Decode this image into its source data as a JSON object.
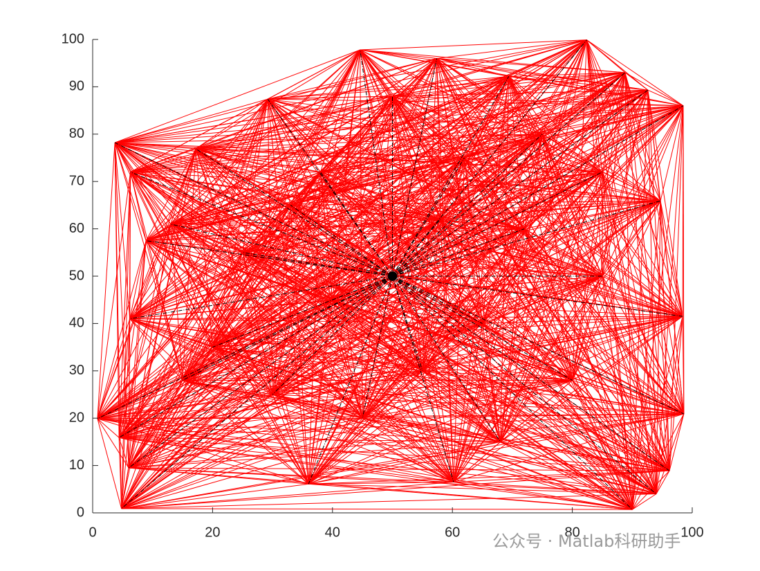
{
  "chart_data": {
    "type": "network",
    "x": [
      3.7,
      44.6,
      82.4,
      98.5,
      98.6,
      96.2,
      90,
      4.8,
      0.8,
      36,
      60.2,
      57.4,
      29.2,
      88.8,
      92.6,
      69.4,
      17.2,
      6.3,
      8.9,
      6.2,
      4.4,
      6,
      13,
      94.7,
      98.4,
      94,
      50,
      75,
      62,
      38,
      25,
      20,
      30,
      45,
      55,
      68,
      80,
      85,
      72,
      40,
      15,
      58,
      85,
      65,
      33
    ],
    "y": [
      78.2,
      97.8,
      99.9,
      86,
      20.9,
      8.9,
      0.7,
      0.9,
      19.9,
      6.1,
      6.5,
      96,
      87.4,
      93,
      89.3,
      92.2,
      76.9,
      72,
      57.5,
      41,
      15.9,
      9.5,
      61,
      65.9,
      41.5,
      4,
      88,
      80,
      75,
      72,
      55,
      35,
      25,
      20,
      30,
      15,
      28,
      50,
      60,
      45,
      28,
      62,
      72,
      40,
      65
    ],
    "center_x": 50,
    "center_y": 50,
    "color": "#ff0000",
    "link_color": "#000000",
    "xlim": [
      0,
      100
    ],
    "xticks": [
      0,
      20,
      40,
      60,
      80,
      100
    ],
    "ylim": [
      0,
      100
    ],
    "yticks": [
      0,
      10,
      20,
      30,
      40,
      50,
      60,
      70,
      80,
      90,
      100
    ],
    "watermark": "公众号 · Matlab科研助手"
  }
}
